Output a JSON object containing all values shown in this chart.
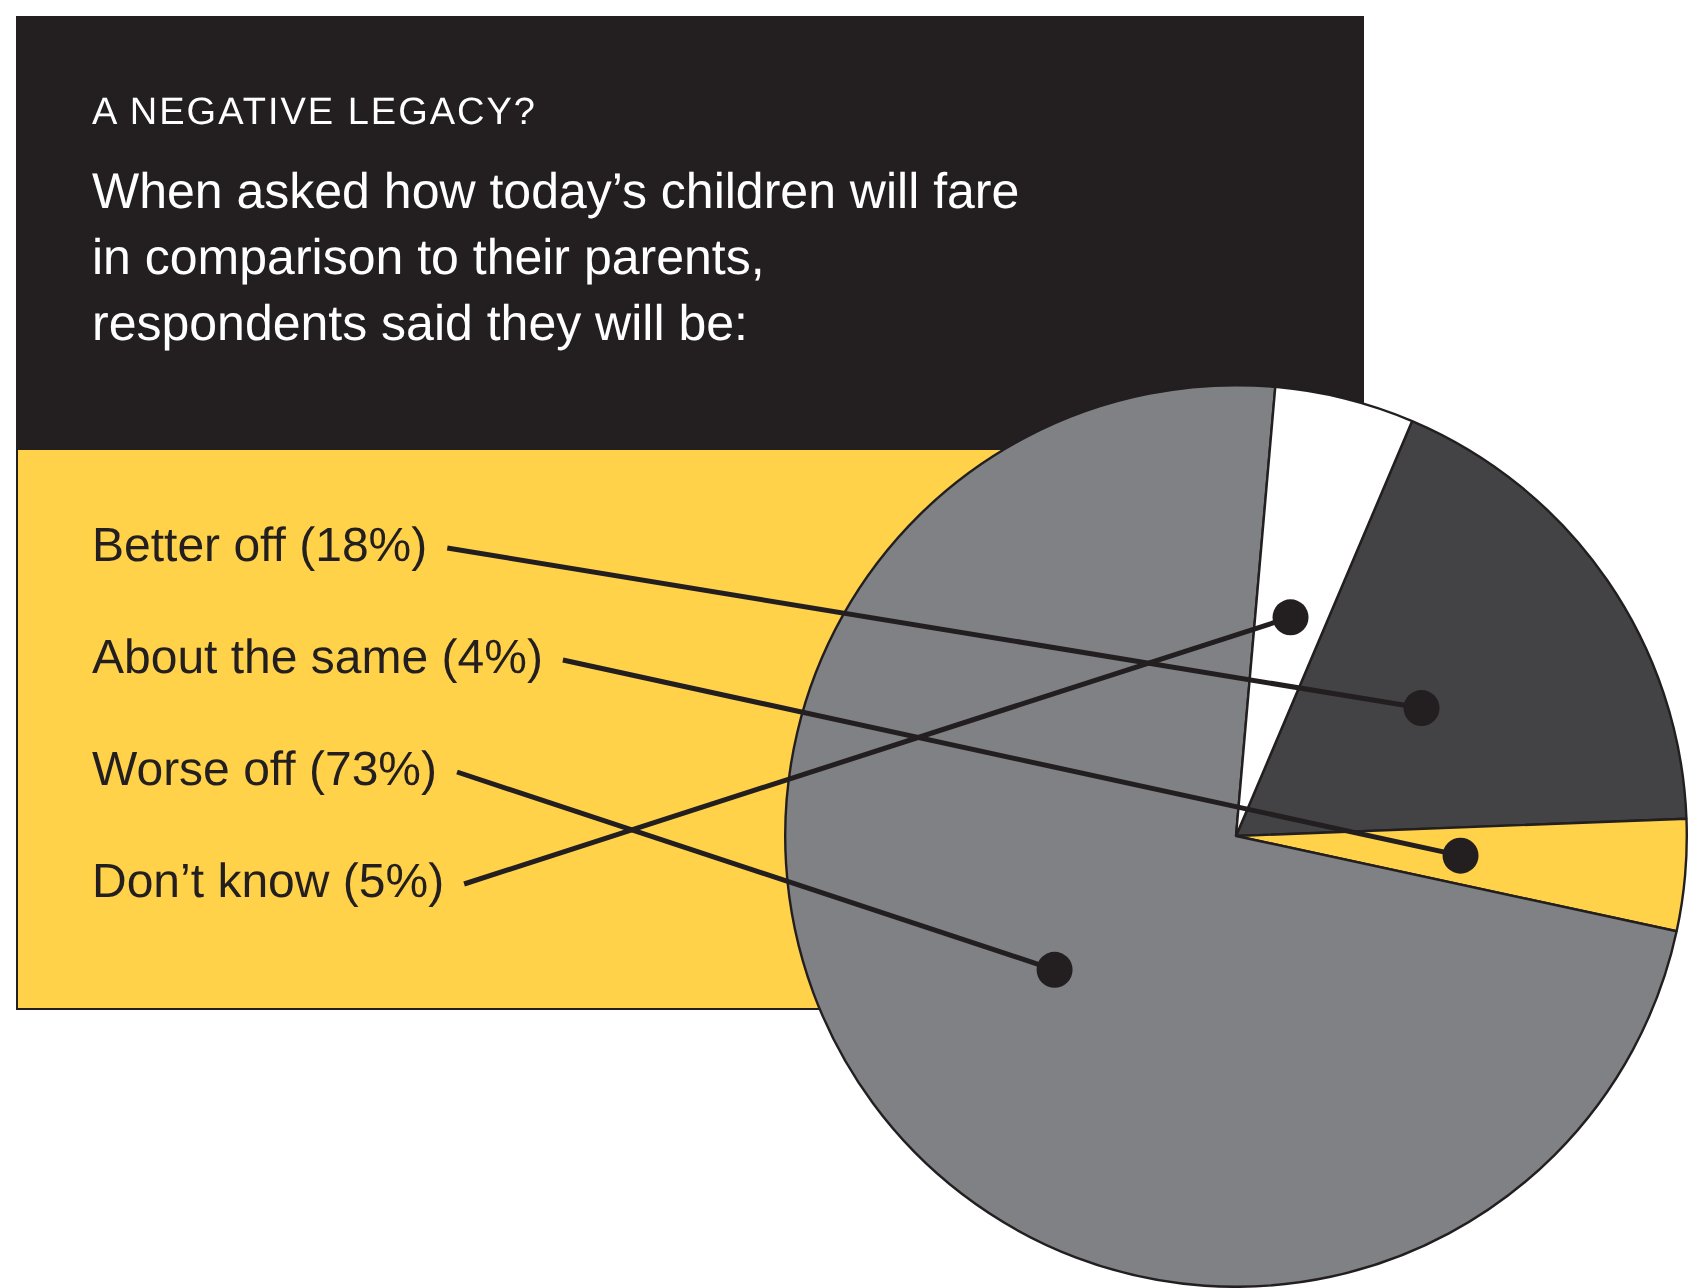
{
  "chart_data": {
    "type": "pie",
    "title": "A NEGATIVE LEGACY?",
    "subtitle": "When asked how today’s children will fare in comparison to their parents, respondents said they will be:",
    "categories": [
      "Better off (18%)",
      "About the same (4%)",
      "Worse off (73%)",
      "Don’t know (5%)"
    ],
    "values": [
      18,
      4,
      73,
      5
    ],
    "colors": [
      "#434345",
      "#ffd24a",
      "#808184",
      "#ffffff"
    ]
  }
}
